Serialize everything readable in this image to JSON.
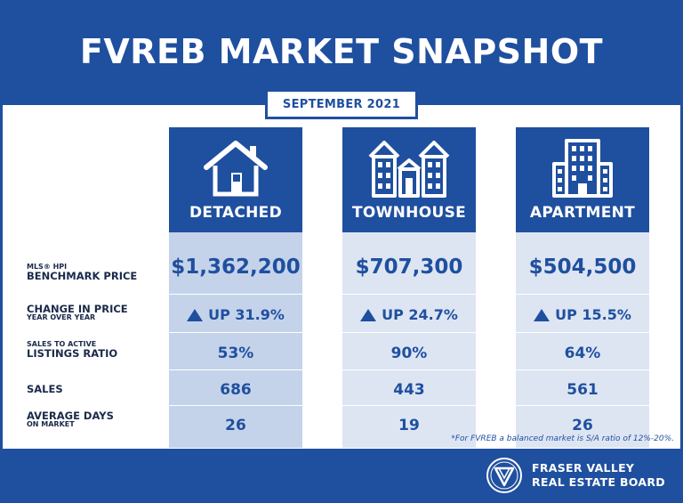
{
  "title": "FVREB MARKET SNAPSHOT",
  "date": "SEPTEMBER 2021",
  "rows": [
    {
      "small_top": "MLS® HPI",
      "big": "BENCHMARK PRICE"
    },
    {
      "big": "CHANGE IN PRICE",
      "small_bottom": "YEAR OVER YEAR"
    },
    {
      "small_top": "SALES TO ACTIVE",
      "big": "LISTINGS RATIO"
    },
    {
      "big": "SALES"
    },
    {
      "big": "AVERAGE DAYS",
      "small_bottom": "ON MARKET"
    }
  ],
  "columns": [
    {
      "label": "DETACHED",
      "icon": "house-icon",
      "price": "$1,362,200",
      "change": "UP 31.9%",
      "ratio": "53%",
      "sales": "686",
      "days": "26"
    },
    {
      "label": "TOWNHOUSE",
      "icon": "townhouse-icon",
      "price": "$707,300",
      "change": "UP 24.7%",
      "ratio": "90%",
      "sales": "443",
      "days": "19"
    },
    {
      "label": "APARTMENT",
      "icon": "apartment-building-icon",
      "price": "$504,500",
      "change": "UP 15.5%",
      "ratio": "64%",
      "sales": "561",
      "days": "26"
    }
  ],
  "footnote": "*For FVREB a balanced market is S/A ratio of 12%-20%.",
  "brand": {
    "line1": "FRASER VALLEY",
    "line2": "REAL ESTATE BOARD",
    "logo_icon": "fvreb-logo-icon"
  },
  "colors": {
    "primary": "#1f4f9f",
    "cell_light": "#dde5f3",
    "cell_first": "#c5d3ea"
  }
}
